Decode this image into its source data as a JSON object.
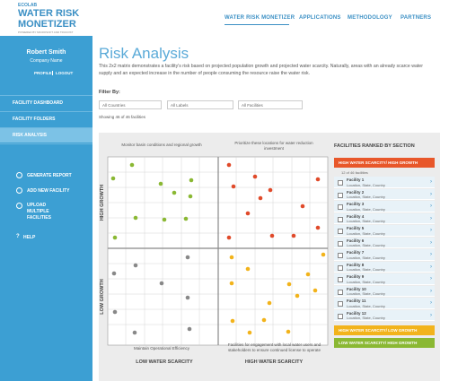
{
  "header": {
    "logo": {
      "brand": "ECOLAB",
      "line1": "WATER RISK",
      "line2": "MONETIZER",
      "tagline": "POWERED BY MICROSOFT AND TRUCOST"
    },
    "nav": [
      "WATER RISK MONETIZER",
      "APPLICATIONS",
      "METHODOLOGY",
      "PARTNERS"
    ]
  },
  "sidebar": {
    "user": "Robert Smith",
    "company": "Company Name",
    "links": [
      "PROFILE",
      "LOGOUT"
    ],
    "menu": [
      "FACILITY DASHBOARD",
      "FACILITY FOLDERS",
      "RISK ANALYSIS"
    ],
    "actions": [
      "GENERATE REPORT",
      "ADD NEW FACILITY",
      "UPLOAD MULTIPLE FACILITIES"
    ],
    "help": "HELP"
  },
  "main": {
    "title": "Risk Analysis",
    "description": "This 2x2 matrix demonstrates a facility's risk based on projected population growth and projected water scarcity. Naturally, areas with an already scarce water supply and an expected increase in the number of people consuming the resource raise the water risk.",
    "filter_label": "Filter By:",
    "filters": [
      "All Countries",
      "All Labels",
      "All Facilities"
    ],
    "showing": "Showing 46 of 46 facilities"
  },
  "matrix": {
    "captions": [
      "Monitor basin conditions and regional growth",
      "Prioritize these locations for water reduction investment",
      "Maintain Operational Efficiency",
      "Facilities for engagement with local water users and stakeholders to ensure continued license to operate"
    ],
    "y_labels": [
      "HIGH GROWTH",
      "LOW GROWTH"
    ],
    "x_labels": [
      "LOW WATER SCARCITY",
      "HIGH WATER SCARCITY"
    ]
  },
  "ranking": {
    "title": "FACILITIES RANKED BY SECTION",
    "selected": "HIGH WATER SCARCITY/ HIGH GROWTH",
    "count": "12 of 46 facilities",
    "facilities": [
      {
        "name": "Facility 1",
        "location": "Location, State, Country"
      },
      {
        "name": "Facility 2",
        "location": "Location, State, Country"
      },
      {
        "name": "Facility 3",
        "location": "Location, State, Country"
      },
      {
        "name": "Facility 4",
        "location": "Location, State, Country"
      },
      {
        "name": "Facility 5",
        "location": "Location, State, Country"
      },
      {
        "name": "Facility 6",
        "location": "Location, State, Country"
      },
      {
        "name": "Facility 7",
        "location": "Location, State, Country"
      },
      {
        "name": "Facility 8",
        "location": "Location, State, Country"
      },
      {
        "name": "Facility 9",
        "location": "Location, State, Country"
      },
      {
        "name": "Facility 10",
        "location": "Location, State, Country"
      },
      {
        "name": "Facility 11",
        "location": "Location, State, Country"
      },
      {
        "name": "Facility 12",
        "location": "Location, State, Country"
      }
    ],
    "other_sections": [
      "HIGH WATER SCARCITY/ LOW GROWTH",
      "LOW WATER SCARCITY/ HIGH GROWTH"
    ]
  }
}
